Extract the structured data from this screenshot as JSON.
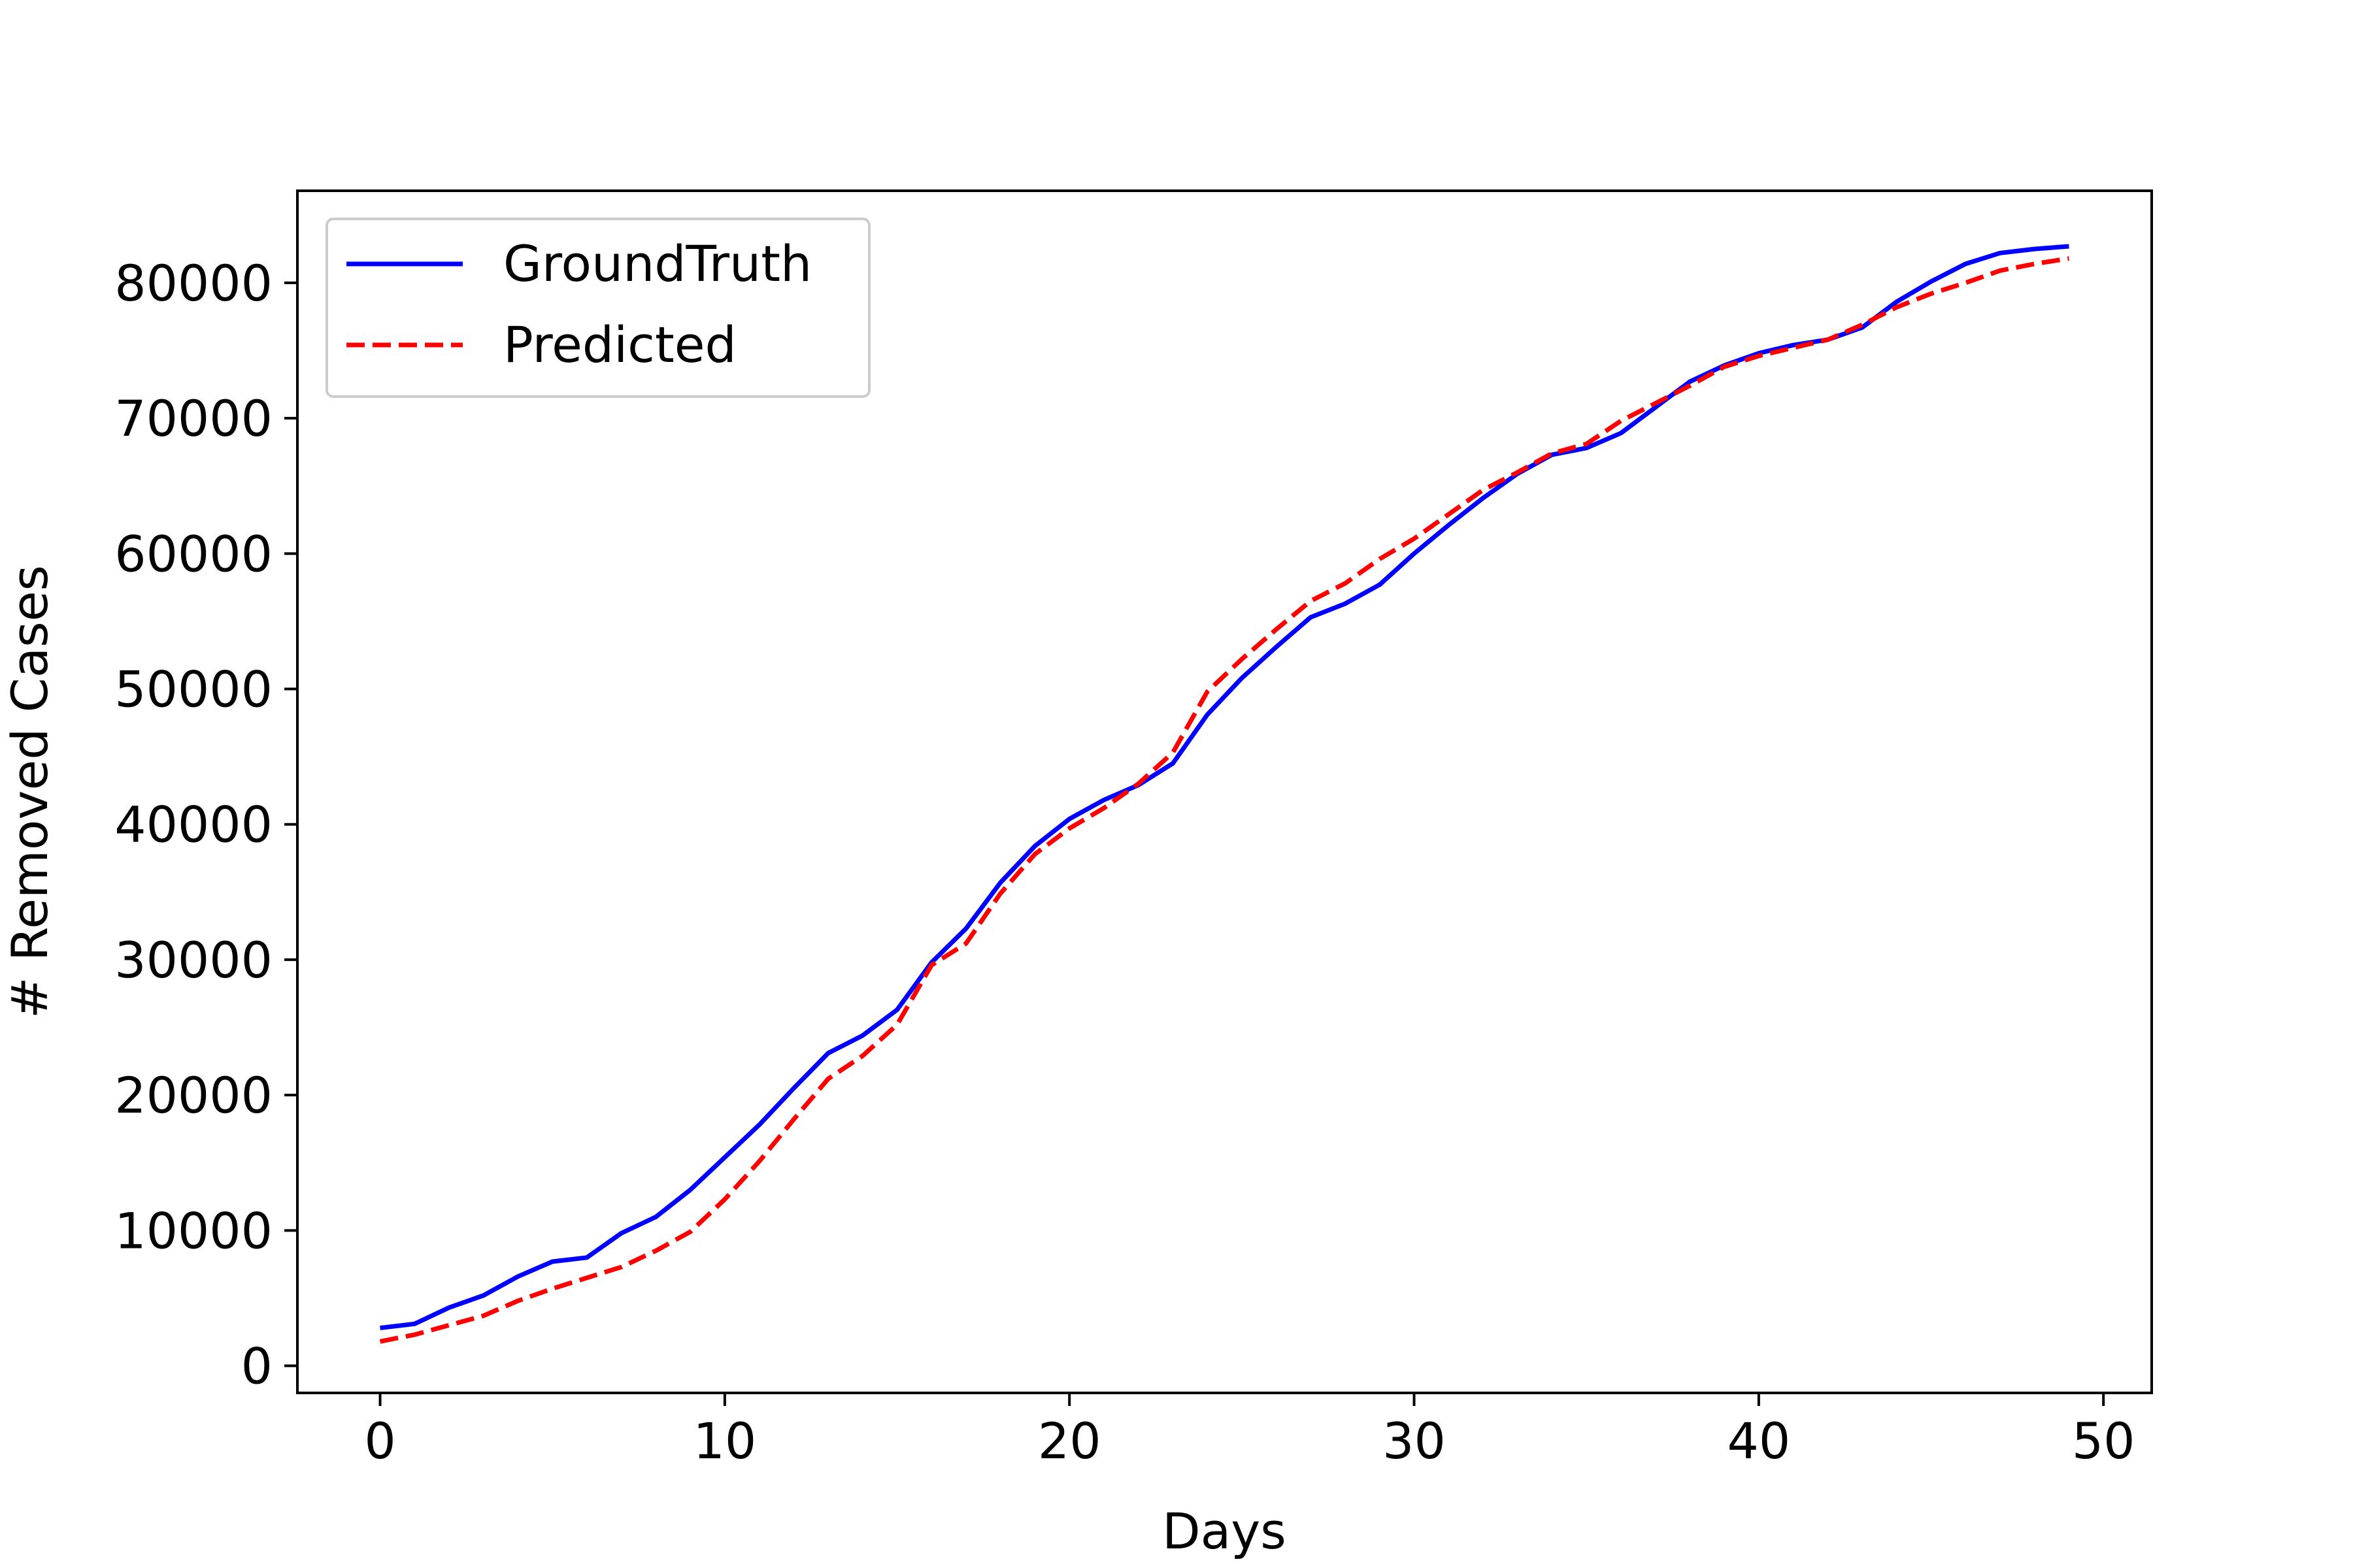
{
  "chart_data": {
    "type": "line",
    "title": "",
    "xlabel": "Days",
    "ylabel": "# Removed Cases",
    "xlim": [
      -2.4,
      51.4
    ],
    "ylim": [
      -2000,
      86800
    ],
    "xticks": [
      0,
      10,
      20,
      30,
      40,
      50
    ],
    "yticks": [
      0,
      10000,
      20000,
      30000,
      40000,
      50000,
      60000,
      70000,
      80000
    ],
    "grid": false,
    "legend_position": "top-left",
    "x": [
      0,
      1,
      2,
      3,
      4,
      5,
      6,
      7,
      8,
      9,
      10,
      11,
      12,
      13,
      14,
      15,
      16,
      17,
      18,
      19,
      20,
      21,
      22,
      23,
      24,
      25,
      26,
      27,
      28,
      29,
      30,
      31,
      32,
      33,
      34,
      35,
      36,
      37,
      38,
      39,
      40,
      41,
      42,
      43,
      44,
      45,
      46,
      47,
      48,
      49
    ],
    "series": [
      {
        "name": "GroundTruth",
        "color": "#0000ff",
        "style": "solid",
        "values": [
          2800,
          3100,
          4300,
          5200,
          6600,
          7700,
          8000,
          9800,
          11000,
          13000,
          15400,
          17800,
          20500,
          23100,
          24400,
          26300,
          29800,
          32300,
          35700,
          38400,
          40400,
          41800,
          42900,
          44500,
          48100,
          50800,
          53100,
          55300,
          56300,
          57700,
          60000,
          62100,
          64100,
          65900,
          67300,
          67800,
          68900,
          70800,
          72700,
          73900,
          74800,
          75400,
          75800,
          76700,
          78600,
          80100,
          81400,
          82200,
          82500,
          82700
        ]
      },
      {
        "name": "Predicted",
        "color": "#ff0000",
        "style": "dashed",
        "values": [
          1800,
          2300,
          3000,
          3700,
          4800,
          5700,
          6500,
          7300,
          8500,
          9900,
          12300,
          15100,
          18200,
          21200,
          22900,
          25200,
          29600,
          31200,
          34900,
          37800,
          39700,
          41200,
          43000,
          45300,
          49800,
          52200,
          54400,
          56500,
          57800,
          59600,
          61100,
          62900,
          64700,
          66000,
          67400,
          68100,
          69800,
          71100,
          72400,
          73800,
          74600,
          75200,
          75800,
          76900,
          78200,
          79200,
          80000,
          80900,
          81400,
          81800
        ]
      }
    ]
  }
}
